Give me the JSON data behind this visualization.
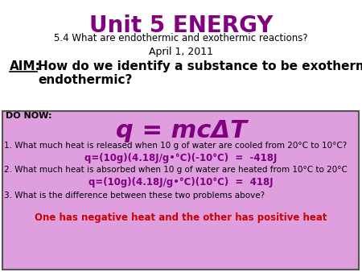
{
  "title": "Unit 5 ENERGY",
  "title_color": "#800080",
  "subtitle": "5.4 What are endothermic and exothermic reactions?",
  "subtitle_color": "#000000",
  "date": "April 1, 2011",
  "date_color": "#000000",
  "aim_label": "AIM:",
  "aim_text": "How do we identify a substance to be exothermic or\nendothermic?",
  "aim_color": "#000000",
  "box_bg_color": "#df9fdf",
  "box_border_color": "#555555",
  "do_now_label": "DO NOW:",
  "formula": "q = mcΔT",
  "formula_color": "#800080",
  "q1": "1. What much heat is released when 10 g of water are cooled from 20°C to 10°C?",
  "q1_answer": "q=(10g)(4.18J/g•°C)(-10°C)  =  -418J",
  "q2": "2. What much heat is absorbed when 10 g of water are heated from 10°C to 20°C",
  "q2_answer": "q=(10g)(4.18J/g•°C)(10°C)  =  418J",
  "q3": "3. What is the difference between these two problems above?",
  "q3_answer": "One has negative heat and the other has positive heat",
  "q3_answer_color": "#cc0000",
  "answer_color": "#800080",
  "text_color": "#000000",
  "bg_color": "#ffffff"
}
